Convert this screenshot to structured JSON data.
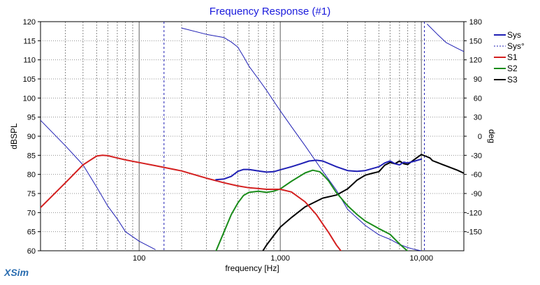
{
  "chart_data": {
    "type": "line",
    "title": "Frequency Response (#1)",
    "xlabel": "frequency [Hz]",
    "ylabel": "dBSPL",
    "y2label": "deg",
    "x_scale": "log",
    "xlim": [
      20,
      20000
    ],
    "ylim": [
      60,
      120
    ],
    "y2lim": [
      -180,
      180
    ],
    "x_ticks": [
      100,
      1000,
      10000
    ],
    "x_tick_labels": [
      "100",
      "1,000",
      "10,000"
    ],
    "y_ticks": [
      60,
      65,
      70,
      75,
      80,
      85,
      90,
      95,
      100,
      105,
      110,
      115,
      120
    ],
    "y2_ticks": [
      -150,
      -120,
      -90,
      -60,
      -30,
      0,
      30,
      60,
      90,
      120,
      150,
      180
    ],
    "grid": true,
    "legend_position": "top-right",
    "series": [
      {
        "name": "Sys",
        "axis": "left",
        "color": "#1f1fb4",
        "style": "solid",
        "width": 2,
        "x": [
          20,
          200,
          300,
          350,
          400,
          450,
          500,
          550,
          600,
          700,
          800,
          900,
          1000,
          1200,
          1400,
          1600,
          1800,
          2000,
          2500,
          3000,
          3500,
          4000,
          5000,
          5500,
          6000,
          6500,
          7000,
          7500,
          8000,
          9000,
          10000,
          11000
        ],
        "y": [
          null,
          null,
          null,
          78.6,
          78.8,
          79.5,
          80.8,
          81.3,
          81.3,
          80.9,
          80.6,
          80.7,
          81.2,
          82.0,
          82.8,
          83.5,
          83.7,
          83.5,
          82.0,
          81.0,
          80.8,
          81.0,
          82.0,
          83.0,
          83.5,
          82.8,
          82.5,
          83.2,
          83.0,
          83.5,
          84.0,
          null
        ]
      },
      {
        "name": "Sys°",
        "axis": "right",
        "color": "#1f1fb4",
        "style": "dashed",
        "width": 1,
        "x": [
          20,
          30,
          40,
          50,
          60,
          70,
          80,
          100,
          130,
          150,
          200,
          300,
          400,
          450,
          500,
          550,
          600,
          700,
          800,
          900,
          1000,
          1200,
          1500,
          2000,
          2500,
          3000,
          4000,
          5000,
          6000,
          7000,
          8000,
          9000,
          10000,
          10500,
          11000,
          13000,
          15000,
          18000,
          20000
        ],
        "y": [
          25,
          -15,
          -45,
          -80,
          -110,
          -130,
          -150,
          -165,
          -178,
          null,
          170,
          160,
          155,
          148,
          140,
          125,
          110,
          90,
          72,
          55,
          40,
          15,
          -15,
          -55,
          -85,
          -115,
          -140,
          -155,
          -162,
          -170,
          -175,
          -178,
          -180,
          null,
          176,
          160,
          147,
          138,
          133
        ]
      },
      {
        "name": "S1",
        "axis": "left",
        "color": "#d42020",
        "style": "solid",
        "width": 2,
        "x": [
          20,
          30,
          40,
          50,
          55,
          60,
          70,
          80,
          100,
          130,
          200,
          300,
          400,
          500,
          600,
          700,
          800,
          900,
          1000,
          1200,
          1500,
          1800,
          2000,
          2200,
          2500,
          2700
        ],
        "y": [
          71.3,
          77.8,
          82.5,
          84.8,
          85.0,
          84.9,
          84.3,
          83.8,
          83.1,
          82.3,
          80.9,
          79.0,
          77.8,
          77.0,
          76.5,
          76.3,
          76.1,
          76.1,
          76.1,
          75.4,
          72.8,
          69.5,
          67.0,
          64.8,
          61.5,
          59.9
        ]
      },
      {
        "name": "S2",
        "axis": "left",
        "color": "#1a8c1a",
        "style": "solid",
        "width": 2,
        "x": [
          350,
          400,
          450,
          500,
          550,
          600,
          700,
          800,
          900,
          1000,
          1200,
          1500,
          1700,
          1900,
          2000,
          2200,
          2500,
          3000,
          3500,
          4000,
          5000,
          6000,
          7000,
          8000
        ],
        "y": [
          59.9,
          65.0,
          69.5,
          72.5,
          74.5,
          75.3,
          75.6,
          75.3,
          75.6,
          76.2,
          78.2,
          80.4,
          81.1,
          80.7,
          80.0,
          78.3,
          75.2,
          71.8,
          69.5,
          67.8,
          65.8,
          64.3,
          61.8,
          59.9
        ]
      },
      {
        "name": "S3",
        "axis": "left",
        "color": "#000000",
        "style": "solid",
        "width": 2,
        "x": [
          750,
          800,
          900,
          1000,
          1200,
          1500,
          2000,
          2500,
          3000,
          3500,
          4000,
          4500,
          5000,
          5500,
          6000,
          6500,
          7000,
          7500,
          8000,
          9000,
          10000,
          11000,
          11500,
          12000,
          13000,
          15000,
          18000,
          20000
        ],
        "y": [
          59.9,
          61.5,
          64.0,
          66.2,
          68.7,
          71.5,
          73.8,
          74.6,
          76.2,
          78.5,
          79.8,
          80.3,
          80.7,
          82.4,
          83.1,
          82.8,
          83.5,
          82.8,
          82.6,
          84.0,
          85.2,
          84.6,
          84.3,
          83.6,
          83.1,
          82.2,
          81.1,
          80.3
        ]
      }
    ]
  },
  "branding": "XSim"
}
